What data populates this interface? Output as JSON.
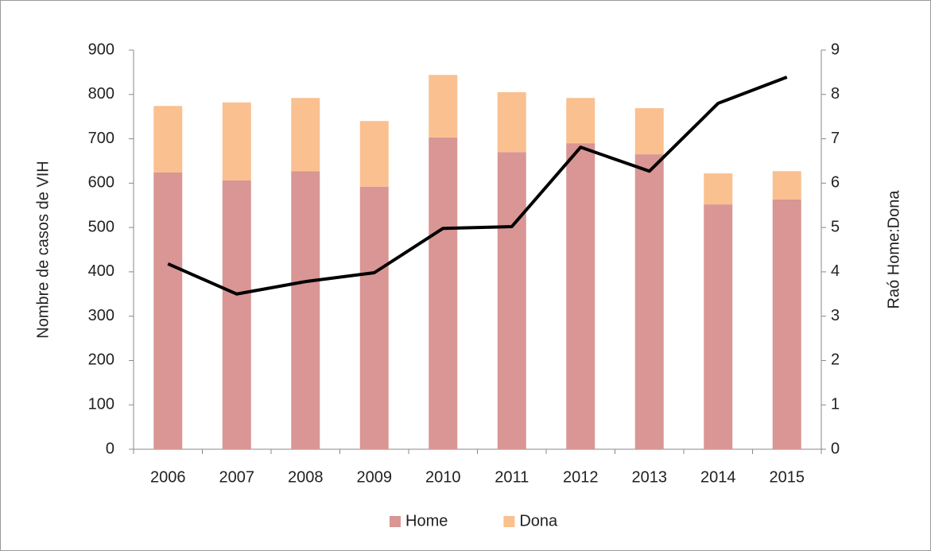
{
  "chart_data": {
    "type": "bar_line",
    "categories": [
      "2006",
      "2007",
      "2008",
      "2009",
      "2010",
      "2011",
      "2012",
      "2013",
      "2014",
      "2015"
    ],
    "series": [
      {
        "name": "Home",
        "color": "#d99694",
        "values": [
          624,
          606,
          627,
          592,
          703,
          670,
          690,
          665,
          552,
          563
        ]
      },
      {
        "name": "Dona",
        "color": "#fac090",
        "values": [
          150,
          176,
          165,
          148,
          141,
          135,
          102,
          104,
          70,
          64
        ]
      },
      {
        "name": "Raó Home:Dona",
        "color": "#000000",
        "axis": "y2",
        "values": [
          4.18,
          3.5,
          3.78,
          3.98,
          4.98,
          5.02,
          6.81,
          6.27,
          7.8,
          8.39
        ]
      }
    ],
    "ylabel": "Nombre de casos de VIH",
    "y2label": "Raó Home:Dona",
    "ylim": [
      0,
      900
    ],
    "yticks": [
      0,
      100,
      200,
      300,
      400,
      500,
      600,
      700,
      800,
      900
    ],
    "y2lim": [
      0,
      9
    ],
    "y2ticks": [
      0,
      1,
      2,
      3,
      4,
      5,
      6,
      7,
      8,
      9
    ],
    "legend": "bottom"
  }
}
